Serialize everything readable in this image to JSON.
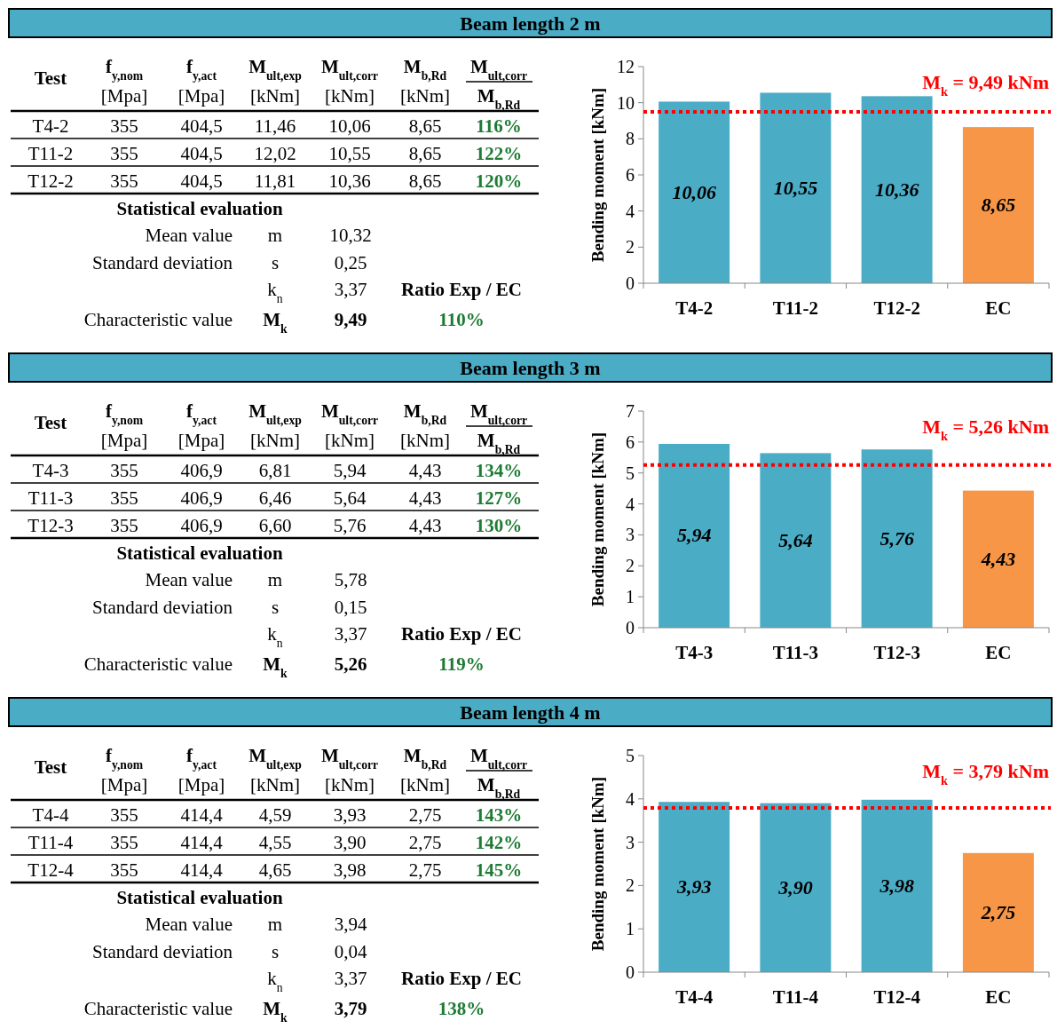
{
  "chart_data": [
    {
      "type": "other",
      "title": "Beam length 2 m",
      "annotations": [
        "Test",
        "f$_{y,nom}$",
        "f$_{y,act}$",
        "M$_{ult,exp}$",
        "M$_{ult,corr}$",
        "M$_{b,Rd}$",
        "M$_{ult,corr}$",
        "[Mpa]",
        "[Mpa]",
        "[kNm]",
        "[kNm]",
        "[kNm]",
        "M$_{b,Rd}$",
        "T4-2",
        "355",
        "404,5",
        "11,46",
        "10,06",
        "8,65",
        "116%",
        "T11-2",
        "355",
        "404,5",
        "12,02",
        "10,55",
        "8,65",
        "122%",
        "T12-2",
        "355",
        "404,5",
        "11,81",
        "10,36",
        "8,65",
        "120%",
        "Statistical evaluation",
        "Mean value",
        "m",
        "10,32",
        "Standard deviation",
        "s",
        "0,25",
        "k$_{n}$",
        "3,37",
        "Ratio Exp / EC",
        "Characteristic value",
        "M$_{k}$",
        "9,49",
        "110%"
      ]
    },
    {
      "type": "bar",
      "categories": [
        "T4-2",
        "T11-2",
        "T12-2",
        "EC"
      ],
      "values": [
        10.06,
        10.55,
        10.36,
        8.65
      ],
      "colors": [
        "#4bacc6",
        "#4bacc6",
        "#4bacc6",
        "#f79646"
      ],
      "value_labels": [
        "10,06",
        "10,55",
        "10,36",
        "8,65"
      ],
      "ylabel": "Bending moment [kNm]",
      "ylim": [
        0,
        12
      ],
      "yticks": [
        0,
        2,
        4,
        6,
        8,
        10,
        12
      ],
      "grid": false,
      "ref_lines": [
        {
          "axis": "y",
          "value": 9.49,
          "label": "M$_{k}$ = 9,49 kNm",
          "color": "#ff0000",
          "line_style": "dotted"
        }
      ]
    },
    {
      "type": "other",
      "title": "Beam length 3 m",
      "annotations": [
        "Test",
        "f$_{y,nom}$",
        "f$_{y,act}$",
        "M$_{ult,exp}$",
        "M$_{ult,corr}$",
        "M$_{b,Rd}$",
        "M$_{ult,corr}$",
        "[Mpa]",
        "[Mpa]",
        "[kNm]",
        "[kNm]",
        "[kNm]",
        "M$_{b,Rd}$",
        "T4-3",
        "355",
        "406,9",
        "6,81",
        "5,94",
        "4,43",
        "134%",
        "T11-3",
        "355",
        "406,9",
        "6,46",
        "5,64",
        "4,43",
        "127%",
        "T12-3",
        "355",
        "406,9",
        "6,60",
        "5,76",
        "4,43",
        "130%",
        "Statistical evaluation",
        "Mean value",
        "m",
        "5,78",
        "Standard deviation",
        "s",
        "0,15",
        "k$_{n}$",
        "3,37",
        "Ratio Exp / EC",
        "Characteristic value",
        "M$_{k}$",
        "5,26",
        "119%"
      ]
    },
    {
      "type": "bar",
      "categories": [
        "T4-3",
        "T11-3",
        "T12-3",
        "EC"
      ],
      "values": [
        5.94,
        5.64,
        5.76,
        4.43
      ],
      "colors": [
        "#4bacc6",
        "#4bacc6",
        "#4bacc6",
        "#f79646"
      ],
      "value_labels": [
        "5,94",
        "5,64",
        "5,76",
        "4,43"
      ],
      "ylabel": "Bending moment [kNm]",
      "ylim": [
        0,
        7
      ],
      "yticks": [
        0,
        1,
        2,
        3,
        4,
        5,
        6,
        7
      ],
      "grid": false,
      "ref_lines": [
        {
          "axis": "y",
          "value": 5.26,
          "label": "M$_{k}$ = 5,26 kNm",
          "color": "#ff0000",
          "line_style": "dotted"
        }
      ]
    },
    {
      "type": "other",
      "title": "Beam length 4 m",
      "annotations": [
        "Test",
        "f$_{y,nom}$",
        "f$_{y,act}$",
        "M$_{ult,exp}$",
        "M$_{ult,corr}$",
        "M$_{b,Rd}$",
        "M$_{ult,corr}$",
        "[Mpa]",
        "[Mpa]",
        "[kNm]",
        "[kNm]",
        "[kNm]",
        "M$_{b,Rd}$",
        "T4-4",
        "355",
        "414,4",
        "4,59",
        "3,93",
        "2,75",
        "143%",
        "T11-4",
        "355",
        "414,4",
        "4,55",
        "3,90",
        "2,75",
        "142%",
        "T12-4",
        "355",
        "414,4",
        "4,65",
        "3,98",
        "2,75",
        "145%",
        "Statistical evaluation",
        "Mean value",
        "m",
        "3,94",
        "Standard deviation",
        "s",
        "0,04",
        "k$_{n}$",
        "3,37",
        "Ratio Exp / EC",
        "Characteristic value",
        "M$_{k}$",
        "3,79",
        "138%"
      ]
    },
    {
      "type": "bar",
      "categories": [
        "T4-4",
        "T11-4",
        "T12-4",
        "EC"
      ],
      "values": [
        3.93,
        3.9,
        3.98,
        2.75
      ],
      "colors": [
        "#4bacc6",
        "#4bacc6",
        "#4bacc6",
        "#f79646"
      ],
      "value_labels": [
        "3,93",
        "3,90",
        "3,98",
        "2,75"
      ],
      "ylabel": "Bending moment [kNm]",
      "ylim": [
        0,
        5
      ],
      "yticks": [
        0,
        1,
        2,
        3,
        4,
        5
      ],
      "grid": false,
      "ref_lines": [
        {
          "axis": "y",
          "value": 3.79,
          "label": "M$_{k}$ = 3,79 kNm",
          "color": "#ff0000",
          "line_style": "dotted"
        }
      ]
    }
  ]
}
